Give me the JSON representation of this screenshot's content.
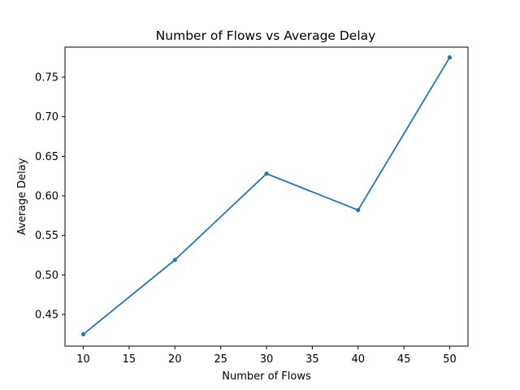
{
  "chart_data": {
    "type": "line",
    "title": "Number of Flows vs Average Delay",
    "xlabel": "Number of Flows",
    "ylabel": "Average Delay",
    "x": [
      10,
      20,
      30,
      40,
      50
    ],
    "series": [
      {
        "values": [
          0.425,
          0.519,
          0.628,
          0.582,
          0.775
        ],
        "color": "#1f77b4",
        "marker": "point"
      }
    ],
    "xlim": [
      8,
      52
    ],
    "ylim": [
      0.41,
      0.788
    ],
    "x_ticks": [
      10,
      15,
      20,
      25,
      30,
      35,
      40,
      45,
      50
    ],
    "y_ticks": [
      0.45,
      0.5,
      0.55,
      0.6,
      0.65,
      0.7,
      0.75
    ],
    "x_tick_labels": [
      "10",
      "15",
      "20",
      "25",
      "30",
      "35",
      "40",
      "45",
      "50"
    ],
    "y_tick_labels": [
      "0.45",
      "0.50",
      "0.55",
      "0.60",
      "0.65",
      "0.70",
      "0.75"
    ],
    "grid": false,
    "legend": "none"
  }
}
